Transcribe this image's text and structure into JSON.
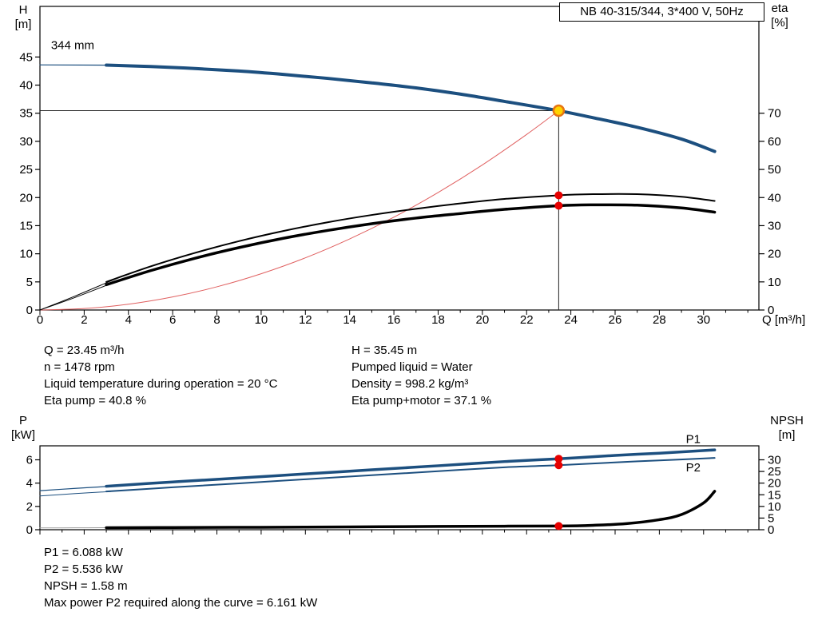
{
  "title_box": "NB 40-315/344, 3*400 V, 50Hz",
  "axis_corner_labels": {
    "top_left": [
      "H",
      "[m]"
    ],
    "top_right": [
      "eta",
      "[%]"
    ],
    "bottom_left": [
      "P",
      "[kW]"
    ],
    "bottom_right": [
      "NPSH",
      "[m]"
    ]
  },
  "info_top": {
    "col1": [
      "Q = 23.45 m³/h",
      "n = 1478 rpm",
      "Liquid temperature during operation = 20 °C",
      "Eta pump = 40.8 %"
    ],
    "col2": [
      "H = 35.45 m",
      "Pumped liquid = Water",
      "Density = 998.2 kg/m³",
      "Eta pump+motor = 37.1 %"
    ]
  },
  "info_bottom": [
    "P1 = 6.088 kW",
    "P2 = 5.536 kW",
    "NPSH = 1.58 m",
    "Max power P2 required along the curve = 6.161 kW"
  ],
  "colors": {
    "curve_blue": "#1c4f7f",
    "curve_black": "#000000",
    "parabola_red": "#e06060",
    "dot_red": "#e60000",
    "duty_fill": "#ffd400",
    "duty_ring": "#e87511",
    "guide": "#222222"
  },
  "chart_data": [
    {
      "id": "top",
      "type": "line",
      "xlabel": "Q [m³/h]",
      "show_x_tick_labels": true,
      "xlim": [
        0,
        32.5
      ],
      "x_minor_step": 1,
      "x_ticks": [
        0,
        2,
        4,
        6,
        8,
        10,
        12,
        14,
        16,
        18,
        20,
        22,
        24,
        26,
        28,
        30
      ],
      "left": {
        "name": "H [m]",
        "lim": [
          0,
          54
        ],
        "ticks": [
          0,
          5,
          10,
          15,
          20,
          25,
          30,
          35,
          40,
          45
        ]
      },
      "right": {
        "name": "eta [%]",
        "lim": [
          0,
          108
        ],
        "ticks": [
          0,
          10,
          20,
          30,
          40,
          50,
          60,
          70
        ]
      },
      "guides": [
        {
          "type": "h",
          "axis": "left",
          "y": 35.45,
          "x0": 0,
          "x1": 23.45
        },
        {
          "type": "v",
          "axis": "left",
          "x": 23.45,
          "y0": 0,
          "y1": 35.45
        }
      ],
      "series": [
        {
          "name": "load-parabola",
          "axis": "left",
          "color": "#e06060",
          "width": 1,
          "x": [
            0,
            2,
            4,
            6,
            8,
            10,
            12,
            14,
            16,
            18,
            20,
            22,
            23.45
          ],
          "y": [
            0,
            0.26,
            1.03,
            2.32,
            4.13,
            6.45,
            9.28,
            12.64,
            16.51,
            20.9,
            25.8,
            31.22,
            35.45
          ]
        },
        {
          "name": "eta-pump-lead",
          "axis": "right",
          "color": "#000000",
          "width": 1,
          "x": [
            0,
            1.6,
            3.4
          ],
          "y": [
            0,
            5,
            11
          ]
        },
        {
          "name": "eta-pump",
          "axis": "right",
          "color": "#000000",
          "width": 2,
          "x": [
            3,
            5,
            7,
            9,
            11,
            13,
            15,
            17,
            19,
            21,
            23.45,
            25,
            27,
            29,
            30.5
          ],
          "y": [
            10,
            15.5,
            20.3,
            24.5,
            28.1,
            31.2,
            33.8,
            36,
            37.9,
            39.5,
            40.8,
            41.2,
            41.2,
            40.3,
            38.8
          ]
        },
        {
          "name": "eta-pump-motor-lead",
          "axis": "right",
          "color": "#000000",
          "width": 1,
          "x": [
            0,
            1.6,
            3.4
          ],
          "y": [
            0,
            4.5,
            10
          ]
        },
        {
          "name": "eta-pump-motor",
          "axis": "right",
          "color": "#000000",
          "width": 3.5,
          "x": [
            3,
            5,
            7,
            9,
            11,
            13,
            15,
            17,
            19,
            21,
            23.45,
            25,
            27,
            29,
            30.5
          ],
          "y": [
            9,
            14,
            18.4,
            22.2,
            25.5,
            28.3,
            30.7,
            32.7,
            34.3,
            35.8,
            37.1,
            37.4,
            37.3,
            36.3,
            34.8
          ]
        },
        {
          "name": "hq-lead",
          "axis": "left",
          "color": "#1c4f7f",
          "width": 1.2,
          "x": [
            0,
            3.2
          ],
          "y": [
            43.6,
            43.55
          ]
        },
        {
          "name": "hq-344mm",
          "axis": "left",
          "color": "#1c4f7f",
          "width": 4,
          "x": [
            3,
            5,
            7,
            9,
            11,
            13,
            15,
            17,
            19,
            21,
            23.45,
            25,
            27,
            29,
            30.5
          ],
          "y": [
            43.55,
            43.3,
            42.95,
            42.5,
            41.9,
            41.2,
            40.4,
            39.5,
            38.4,
            37.1,
            35.45,
            34.2,
            32.5,
            30.4,
            28.2
          ]
        }
      ],
      "markers": [
        {
          "name": "eta-pump-value-dot",
          "axis": "right",
          "x": 23.45,
          "y": 40.8,
          "r": 5,
          "fill": "#e60000"
        },
        {
          "name": "eta-pump-motor-value-dot",
          "axis": "right",
          "x": 23.45,
          "y": 37.1,
          "r": 5,
          "fill": "#e60000"
        },
        {
          "name": "duty-point",
          "axis": "left",
          "x": 23.45,
          "y": 35.45,
          "r": 6.5,
          "fill": "#ffd400",
          "stroke": "#e87511",
          "sw": 2.5
        }
      ],
      "labels": [
        {
          "text": "344 mm",
          "axis": "left",
          "x": 0.5,
          "y": 46.4,
          "color": "#000000"
        }
      ]
    },
    {
      "id": "bottom",
      "type": "line",
      "xlabel": "",
      "show_x_tick_labels": false,
      "xlim": [
        0,
        32.5
      ],
      "x_minor_step": 1,
      "x_ticks": [
        0,
        2,
        4,
        6,
        8,
        10,
        12,
        14,
        16,
        18,
        20,
        22,
        24,
        26,
        28,
        30
      ],
      "left": {
        "name": "P [kW]",
        "lim": [
          0,
          7.2
        ],
        "ticks": [
          0,
          2,
          4,
          6
        ]
      },
      "right": {
        "name": "NPSH [m]",
        "lim": [
          0,
          36
        ],
        "ticks": [
          0,
          5,
          10,
          15,
          20,
          25,
          30
        ]
      },
      "guides": [],
      "series": [
        {
          "name": "npsh-lead",
          "axis": "right",
          "color": "#999999",
          "width": 1,
          "x": [
            0,
            1.6,
            3.2
          ],
          "y": [
            0.75,
            0.8,
            0.85
          ]
        },
        {
          "name": "npsh",
          "axis": "right",
          "color": "#000000",
          "width": 3.5,
          "x": [
            3,
            6,
            10,
            14,
            18,
            21,
            23.45,
            25,
            26.5,
            28,
            29,
            30,
            30.5
          ],
          "y": [
            0.85,
            0.95,
            1.05,
            1.2,
            1.4,
            1.52,
            1.58,
            1.9,
            2.6,
            4.3,
            6.5,
            11.5,
            16.5
          ]
        },
        {
          "name": "p2-lead",
          "axis": "left",
          "color": "#1c4f7f",
          "width": 1,
          "x": [
            0,
            1.6,
            3.2
          ],
          "y": [
            2.9,
            3.1,
            3.28
          ]
        },
        {
          "name": "p2",
          "axis": "left",
          "color": "#1c4f7f",
          "width": 2,
          "x": [
            3,
            6,
            9,
            12,
            15,
            18,
            21,
            23.45,
            26,
            28,
            30.5
          ],
          "y": [
            3.28,
            3.64,
            3.98,
            4.33,
            4.68,
            5.02,
            5.36,
            5.536,
            5.78,
            5.95,
            6.16
          ]
        },
        {
          "name": "p1-lead",
          "axis": "left",
          "color": "#1c4f7f",
          "width": 1.2,
          "x": [
            0,
            1.6,
            3.2
          ],
          "y": [
            3.35,
            3.55,
            3.73
          ]
        },
        {
          "name": "p1",
          "axis": "left",
          "color": "#1c4f7f",
          "width": 3.5,
          "x": [
            3,
            6,
            9,
            12,
            15,
            18,
            21,
            23.45,
            26,
            28,
            30.5
          ],
          "y": [
            3.73,
            4.1,
            4.44,
            4.79,
            5.14,
            5.49,
            5.85,
            6.088,
            6.38,
            6.57,
            6.85
          ]
        }
      ],
      "markers": [
        {
          "name": "p1-value-dot",
          "axis": "left",
          "x": 23.45,
          "y": 6.088,
          "r": 5,
          "fill": "#e60000"
        },
        {
          "name": "p2-value-dot",
          "axis": "left",
          "x": 23.45,
          "y": 5.536,
          "r": 5,
          "fill": "#e60000"
        },
        {
          "name": "npsh-value-dot",
          "axis": "right",
          "x": 23.45,
          "y": 1.58,
          "r": 5,
          "fill": "#e60000"
        }
      ],
      "labels": [
        {
          "text": "P1",
          "axis": "left",
          "x": 29.2,
          "y": 7.45,
          "color": "#1c4f7f"
        },
        {
          "text": "P2",
          "axis": "left",
          "x": 29.2,
          "y": 5.0,
          "color": "#1c4f7f"
        }
      ]
    }
  ]
}
